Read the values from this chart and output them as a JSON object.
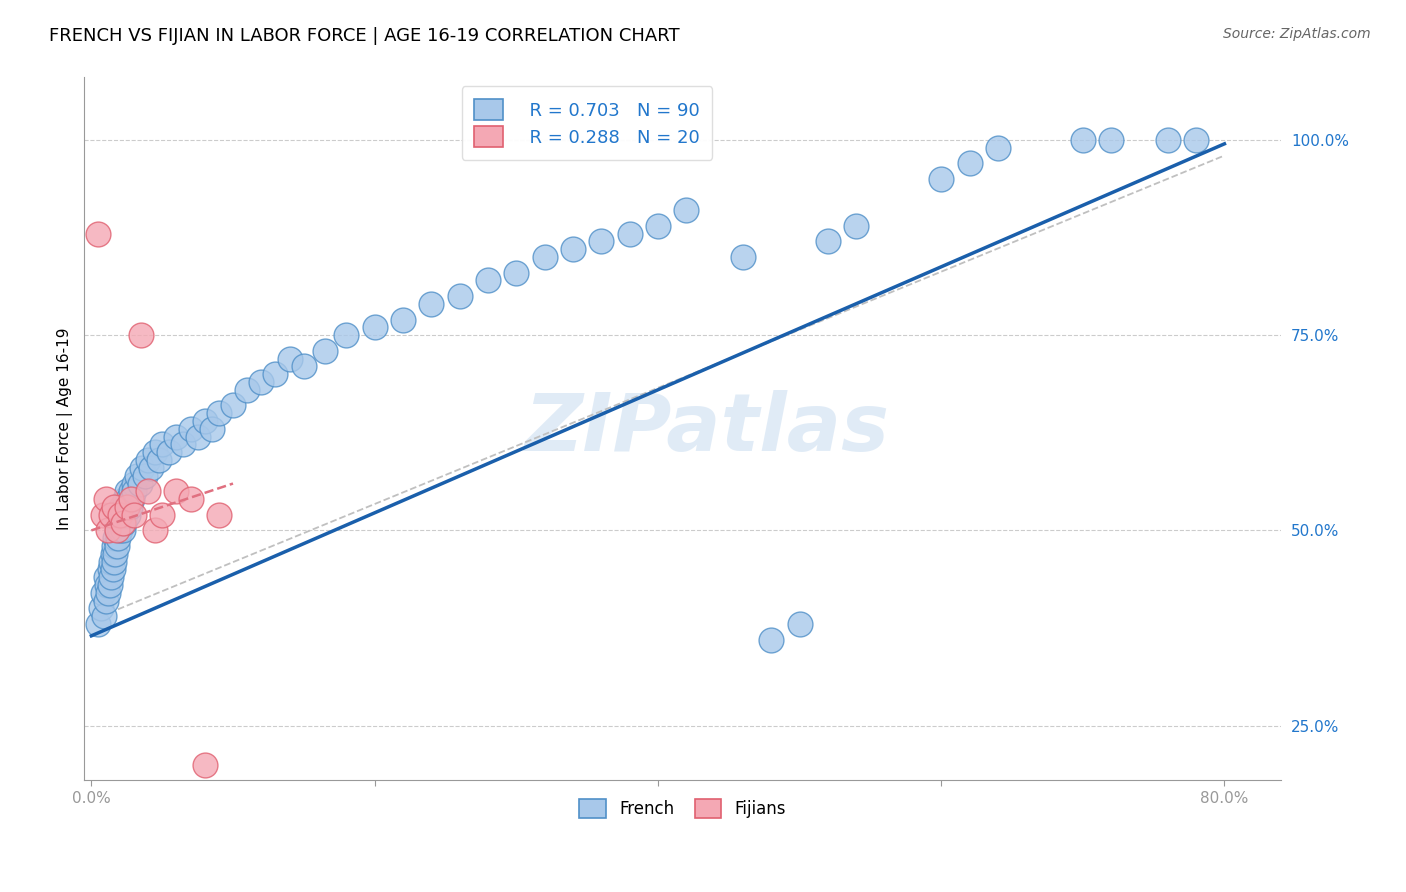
{
  "title": "FRENCH VS FIJIAN IN LABOR FORCE | AGE 16-19 CORRELATION CHART",
  "source": "Source: ZipAtlas.com",
  "ylabel": "In Labor Force | Age 16-19",
  "xlim": [
    -0.005,
    0.84
  ],
  "ylim": [
    0.18,
    1.08
  ],
  "french_R": 0.703,
  "french_N": 90,
  "fijian_R": 0.288,
  "fijian_N": 20,
  "french_color": "#A8C8EA",
  "fijian_color": "#F4A8B4",
  "french_edge_color": "#5090C8",
  "fijian_edge_color": "#E06070",
  "french_line_color": "#1A5FAB",
  "fijian_line_color": "#E07080",
  "gray_line_color": "#C0C0C0",
  "title_fontsize": 13,
  "axis_label_fontsize": 11,
  "tick_fontsize": 11,
  "watermark": "ZIPatlas",
  "french_x": [
    0.005,
    0.007,
    0.008,
    0.009,
    0.01,
    0.01,
    0.011,
    0.012,
    0.013,
    0.013,
    0.014,
    0.014,
    0.015,
    0.015,
    0.016,
    0.016,
    0.017,
    0.017,
    0.018,
    0.018,
    0.019,
    0.019,
    0.02,
    0.02,
    0.021,
    0.021,
    0.022,
    0.022,
    0.023,
    0.023,
    0.024,
    0.024,
    0.025,
    0.025,
    0.026,
    0.026,
    0.027,
    0.028,
    0.029,
    0.03,
    0.03,
    0.032,
    0.034,
    0.036,
    0.038,
    0.04,
    0.042,
    0.045,
    0.048,
    0.05,
    0.055,
    0.06,
    0.065,
    0.07,
    0.075,
    0.08,
    0.085,
    0.09,
    0.1,
    0.11,
    0.12,
    0.13,
    0.14,
    0.15,
    0.165,
    0.18,
    0.2,
    0.22,
    0.24,
    0.26,
    0.28,
    0.3,
    0.32,
    0.34,
    0.36,
    0.38,
    0.4,
    0.42,
    0.46,
    0.48,
    0.5,
    0.52,
    0.54,
    0.6,
    0.62,
    0.64,
    0.7,
    0.72,
    0.76,
    0.78
  ],
  "french_y": [
    0.38,
    0.4,
    0.42,
    0.39,
    0.41,
    0.44,
    0.43,
    0.42,
    0.45,
    0.43,
    0.44,
    0.46,
    0.45,
    0.47,
    0.46,
    0.48,
    0.47,
    0.49,
    0.48,
    0.5,
    0.49,
    0.51,
    0.5,
    0.52,
    0.51,
    0.53,
    0.5,
    0.52,
    0.51,
    0.53,
    0.52,
    0.54,
    0.53,
    0.55,
    0.52,
    0.54,
    0.53,
    0.55,
    0.54,
    0.56,
    0.55,
    0.57,
    0.56,
    0.58,
    0.57,
    0.59,
    0.58,
    0.6,
    0.59,
    0.61,
    0.6,
    0.62,
    0.61,
    0.63,
    0.62,
    0.64,
    0.63,
    0.65,
    0.66,
    0.68,
    0.69,
    0.7,
    0.72,
    0.71,
    0.73,
    0.75,
    0.76,
    0.77,
    0.79,
    0.8,
    0.82,
    0.83,
    0.85,
    0.86,
    0.87,
    0.88,
    0.89,
    0.91,
    0.85,
    0.36,
    0.38,
    0.87,
    0.89,
    0.95,
    0.97,
    0.99,
    1.0,
    1.0,
    1.0,
    1.0
  ],
  "fijian_x": [
    0.005,
    0.008,
    0.01,
    0.012,
    0.014,
    0.016,
    0.018,
    0.02,
    0.022,
    0.025,
    0.028,
    0.03,
    0.035,
    0.04,
    0.045,
    0.05,
    0.06,
    0.07,
    0.08,
    0.09
  ],
  "fijian_y": [
    0.88,
    0.52,
    0.54,
    0.5,
    0.52,
    0.53,
    0.5,
    0.52,
    0.51,
    0.53,
    0.54,
    0.52,
    0.75,
    0.55,
    0.5,
    0.52,
    0.55,
    0.54,
    0.2,
    0.52
  ],
  "french_line_x": [
    0.0,
    0.8
  ],
  "french_line_y": [
    0.365,
    0.995
  ],
  "fijian_line_x": [
    0.0,
    0.1
  ],
  "fijian_line_y": [
    0.5,
    0.56
  ],
  "gray_line_x": [
    0.0,
    0.8
  ],
  "gray_line_y": [
    0.385,
    0.98
  ]
}
